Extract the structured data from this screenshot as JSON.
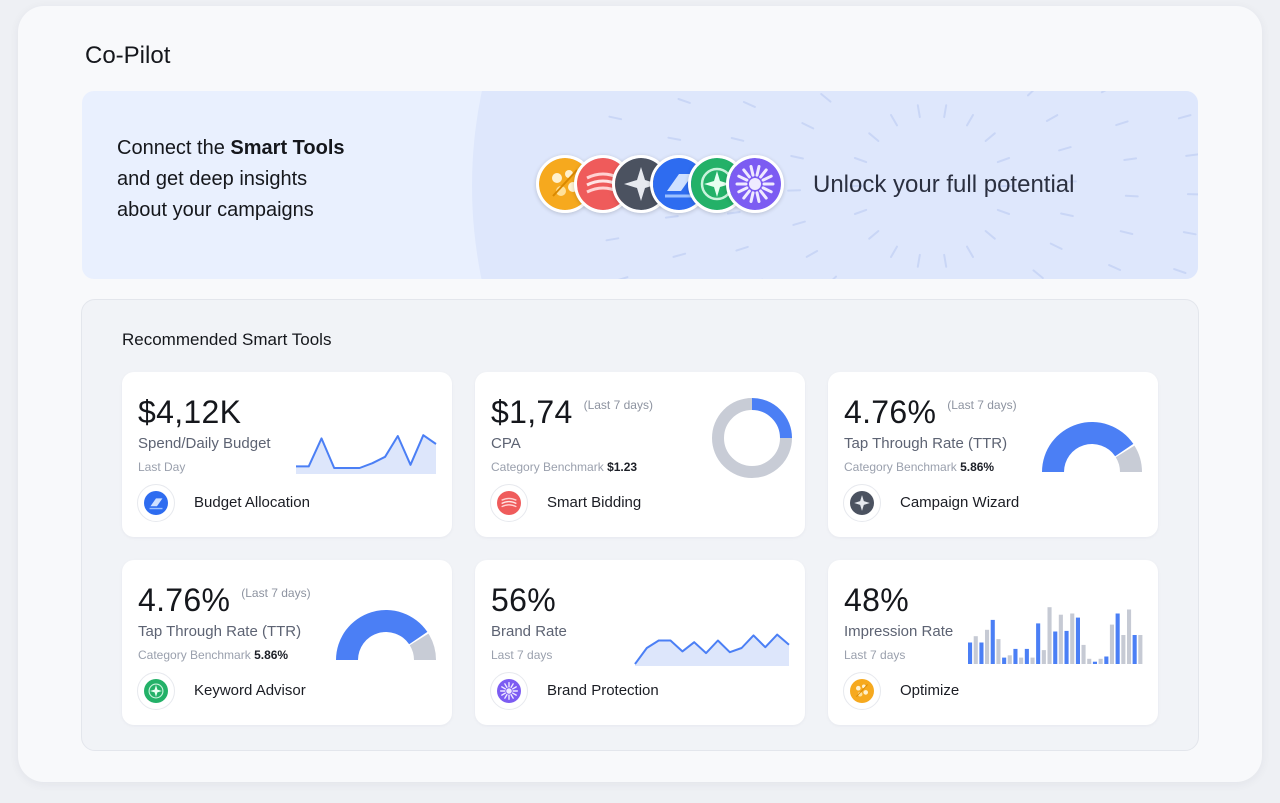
{
  "app": {
    "title": "Co-Pilot"
  },
  "hero": {
    "line1_prefix": "Connect the ",
    "line1_bold": "Smart Tools",
    "line2": "and get deep insights",
    "line3": "about your campaigns",
    "tagline": "Unlock your full potential",
    "tools_stack": [
      "optimize-icon",
      "smart-bidding-icon",
      "campaign-wizard-icon",
      "budget-allocation-icon",
      "keyword-advisor-icon",
      "brand-protection-icon"
    ]
  },
  "recommended": {
    "title": "Recommended Smart Tools",
    "cards": [
      {
        "value": "$4,12K",
        "period": "",
        "label": "Spend/Daily Budget",
        "sub": "Last Day",
        "benchmark_value": "",
        "tool": "Budget Allocation",
        "icon": "budget-allocation-icon",
        "chart_data": {
          "type": "area",
          "values": [
            14,
            14,
            84,
            10,
            10,
            10,
            22,
            38,
            90,
            18,
            92,
            70
          ],
          "ylim": [
            0,
            100
          ]
        }
      },
      {
        "value": "$1,74",
        "period": "(Last 7 days)",
        "label": "CPA",
        "sub": "Category Benchmark",
        "benchmark_value": "$1.23",
        "tool": "Smart Bidding",
        "icon": "smart-bidding-icon",
        "chart_data": {
          "type": "pie",
          "values": [
            25,
            75
          ],
          "colors": [
            "#4b7ff5",
            "#c8ccd6"
          ]
        }
      },
      {
        "value": "4.76%",
        "period": "(Last 7 days)",
        "label": "Tap Through Rate (TTR)",
        "sub": "Category Benchmark",
        "benchmark_value": "5.86%",
        "tool": "Campaign Wizard",
        "icon": "campaign-wizard-icon",
        "chart_data": {
          "type": "gauge",
          "value": 0.81,
          "colors": [
            "#4b7ff5",
            "#c8ccd6"
          ]
        }
      },
      {
        "value": "4.76%",
        "period": "(Last 7 days)",
        "label": "Tap Through Rate (TTR)",
        "sub": "Category Benchmark",
        "benchmark_value": "5.86%",
        "tool": "Keyword Advisor",
        "icon": "keyword-advisor-icon",
        "chart_data": {
          "type": "gauge",
          "value": 0.81,
          "colors": [
            "#4b7ff5",
            "#c8ccd6"
          ]
        }
      },
      {
        "value": "56%",
        "period": "",
        "label": "Brand Rate",
        "sub": "Last 7 days",
        "benchmark_value": "",
        "tool": "Brand Protection",
        "icon": "brand-protection-icon",
        "chart_data": {
          "type": "area",
          "values": [
            0,
            38,
            56,
            56,
            30,
            52,
            26,
            56,
            28,
            38,
            68,
            40,
            70,
            46
          ],
          "ylim": [
            0,
            100
          ]
        }
      },
      {
        "value": "48%",
        "period": "",
        "label": "Impression Rate",
        "sub": "Last 7 days",
        "benchmark_value": "",
        "tool": "Optimize",
        "icon": "optimize-icon",
        "chart_data": {
          "type": "bar",
          "values": [
            37,
            48,
            37,
            59,
            76,
            43,
            11,
            15,
            26,
            11,
            26,
            11,
            70,
            24,
            98,
            56,
            85,
            57,
            87,
            80,
            33,
            9,
            4,
            9,
            13,
            68,
            87,
            50,
            94,
            50,
            50
          ],
          "colors": [
            "#4b7ff5",
            "#c6cad4",
            "#4b7ff5",
            "#c6cad4",
            "#4b7ff5",
            "#c6cad4",
            "#4b7ff5",
            "#c6cad4",
            "#4b7ff5",
            "#c6cad4",
            "#4b7ff5",
            "#c6cad4",
            "#4b7ff5",
            "#c6cad4",
            "#c6cad4",
            "#4b7ff5",
            "#c6cad4",
            "#4b7ff5",
            "#c6cad4",
            "#4b7ff5",
            "#c6cad4",
            "#c6cad4",
            "#4b7ff5",
            "#c6cad4",
            "#4b7ff5",
            "#c6cad4",
            "#4b7ff5",
            "#c6cad4",
            "#c6cad4",
            "#4b7ff5",
            "#c6cad4"
          ],
          "ylim": [
            0,
            100
          ]
        }
      }
    ]
  },
  "colors": {
    "accent": "#4b7ff5",
    "muted": "#c8ccd6",
    "area_fill": "#dde6fb",
    "hero_bg": "#e9f0fe"
  }
}
